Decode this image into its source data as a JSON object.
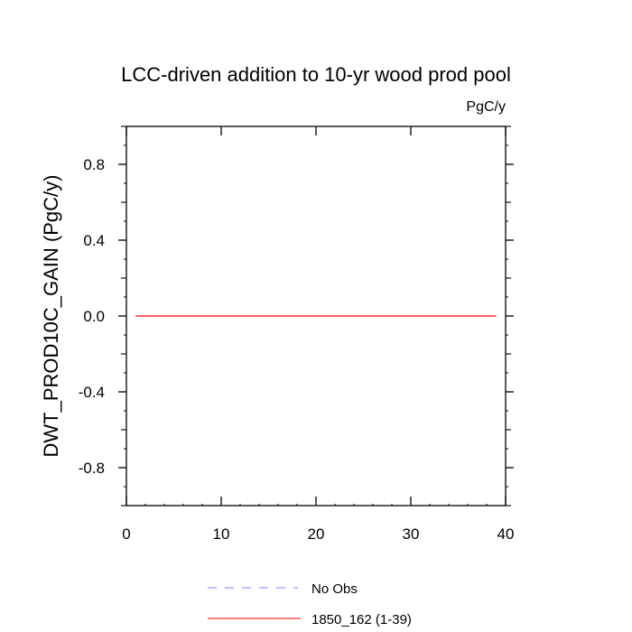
{
  "chart_data": {
    "type": "line",
    "title": "LCC-driven addition to 10-yr wood prod pool",
    "units": "PgC/y",
    "xlabel": "",
    "ylabel": "DWT_PROD10C_GAIN  (PgC/y)",
    "xlim": [
      0,
      40
    ],
    "ylim": [
      -1.0,
      1.0
    ],
    "x_ticks": [
      0,
      10,
      20,
      30,
      40
    ],
    "x_tick_labels": [
      "0",
      "10",
      "20",
      "30",
      "40"
    ],
    "y_ticks": [
      -0.8,
      -0.4,
      0.0,
      0.4,
      0.8
    ],
    "y_tick_labels": [
      "-0.8",
      "-0.4",
      "0.0",
      "0.4",
      "0.8"
    ],
    "grid": false,
    "legend_position": "bottom",
    "series": [
      {
        "name": "No Obs",
        "color": "#8080ff",
        "dash": "dashed",
        "x": [],
        "y": []
      },
      {
        "name": "1850_162 (1-39)",
        "color": "#ff0000",
        "dash": "solid",
        "x": [
          1,
          39
        ],
        "y": [
          0.0,
          0.0
        ]
      }
    ]
  }
}
